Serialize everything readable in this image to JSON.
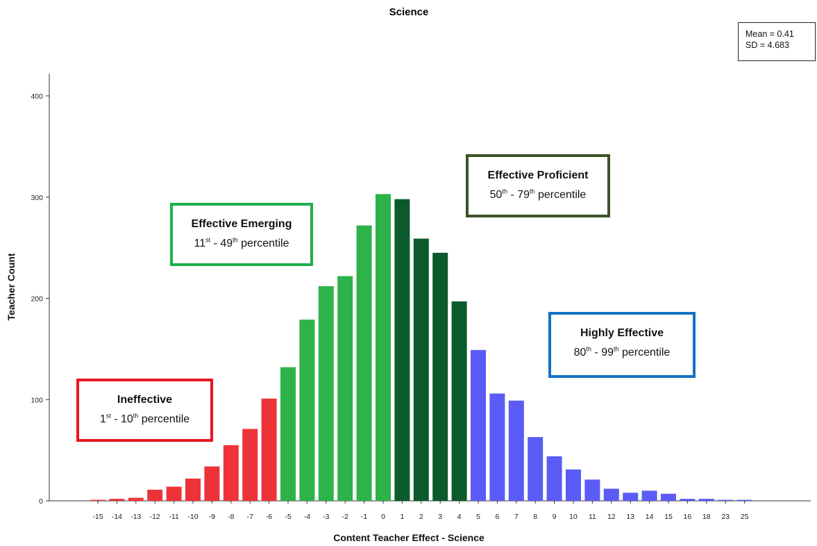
{
  "chart_data": {
    "type": "bar",
    "title": "Science",
    "xlabel": "Content Teacher Effect - Science",
    "ylabel": "Teacher Count",
    "ylim": [
      0,
      420
    ],
    "yticks": [
      0,
      100,
      200,
      300,
      400
    ],
    "grid": false,
    "categories": [
      "-15",
      "-14",
      "-13",
      "-12",
      "-11",
      "-10",
      "-9",
      "-8",
      "-7",
      "-6",
      "-5",
      "-4",
      "-3",
      "-2",
      "-1",
      "0",
      "1",
      "2",
      "3",
      "4",
      "5",
      "6",
      "7",
      "8",
      "9",
      "10",
      "11",
      "12",
      "13",
      "14",
      "15",
      "16",
      "18",
      "23",
      "25"
    ],
    "values": [
      1,
      2,
      3,
      11,
      14,
      22,
      34,
      55,
      71,
      101,
      132,
      179,
      212,
      222,
      272,
      303,
      298,
      259,
      245,
      197,
      149,
      106,
      99,
      63,
      44,
      31,
      21,
      12,
      8,
      10,
      7,
      2,
      2,
      1,
      1
    ],
    "bar_colors": [
      "#EE3338",
      "#EE3338",
      "#EE3338",
      "#EE3338",
      "#EE3338",
      "#EE3338",
      "#EE3338",
      "#EE3338",
      "#EE3338",
      "#EE3338",
      "#2DB34A",
      "#2DB34A",
      "#2DB34A",
      "#2DB34A",
      "#2DB34A",
      "#2DB34A",
      "#0B5A2C",
      "#0B5A2C",
      "#0B5A2C",
      "#0B5A2C",
      "#5B5BF5",
      "#5B5BF5",
      "#5B5BF5",
      "#5B5BF5",
      "#5B5BF5",
      "#5B5BF5",
      "#5B5BF5",
      "#5B5BF5",
      "#5B5BF5",
      "#5B5BF5",
      "#5B5BF5",
      "#5B5BF5",
      "#5B5BF5",
      "#5B5BF5",
      "#5B5BF5"
    ],
    "stats": {
      "mean": "Mean = 0.41",
      "sd": "SD = 4.683"
    }
  },
  "categories_legend": [
    {
      "name": "Ineffective",
      "from": "1",
      "from_sup": "st",
      "to": "10",
      "to_sup": "th",
      "suffix": "percentile",
      "border_color": "#E8171E"
    },
    {
      "name": "Effective Emerging",
      "from": "11",
      "from_sup": "st",
      "to": "49",
      "to_sup": "th",
      "suffix": "percentile",
      "border_color": "#1DB04B"
    },
    {
      "name": "Effective Proficient",
      "from": "50",
      "from_sup": "th",
      "to": "79",
      "to_sup": "th",
      "suffix": "percentile",
      "border_color": "#3C5226"
    },
    {
      "name": "Highly Effective",
      "from": "80",
      "from_sup": "th",
      "to": "99",
      "to_sup": "th",
      "suffix": "percentile",
      "border_color": "#1272C4"
    }
  ]
}
